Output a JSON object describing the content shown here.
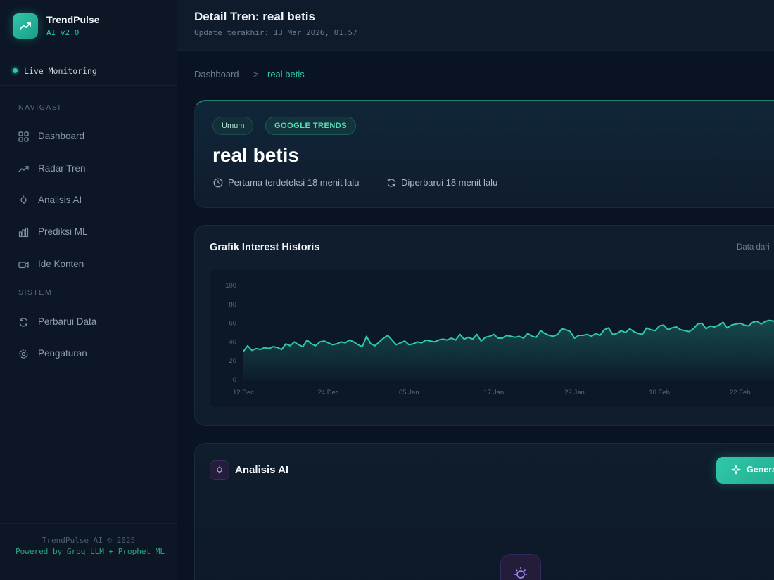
{
  "app": {
    "name": "TrendPulse",
    "version": "AI v2.0"
  },
  "status": {
    "live_label": "Live Monitoring"
  },
  "sidebar": {
    "nav_section": "NAVIGASI",
    "nav_items": [
      {
        "label": "Dashboard",
        "icon": "grid-icon"
      },
      {
        "label": "Radar Tren",
        "icon": "trending-up-icon"
      },
      {
        "label": "Analisis AI",
        "icon": "lightbulb-icon"
      },
      {
        "label": "Prediksi ML",
        "icon": "bar-chart-icon"
      },
      {
        "label": "Ide Konten",
        "icon": "video-icon"
      }
    ],
    "system_section": "SISTEM",
    "system_items": [
      {
        "label": "Perbarui Data",
        "icon": "refresh-icon"
      },
      {
        "label": "Pengaturan",
        "icon": "gear-icon"
      }
    ],
    "footer_copy": "TrendPulse AI © 2025",
    "footer_powered": "Powered by Groq LLM + Prophet ML"
  },
  "header": {
    "title": "Detail Tren: real betis",
    "subtitle": "Update terakhir: 13 Mar 2026, 01.57"
  },
  "breadcrumb": {
    "home": "Dashboard",
    "separator": ">",
    "current": "real betis"
  },
  "trend": {
    "category": "Umum",
    "source": "GOOGLE TRENDS",
    "title": "real betis",
    "first_detected": "Pertama terdeteksi 18 menit lalu",
    "updated": "Diperbarui 18 menit lalu"
  },
  "chart_section": {
    "title": "Grafik Interest Historis",
    "note": "Data dari"
  },
  "ai_section": {
    "title": "Analisis AI",
    "generate_label": "Generate"
  },
  "colors": {
    "accent": "#2fc9a8",
    "background": "#0a1322",
    "ai_purple": "#a78bfa"
  },
  "chart_data": {
    "type": "area",
    "title": "Grafik Interest Historis",
    "xlabel": "",
    "ylabel": "",
    "ylim": [
      0,
      100
    ],
    "yticks": [
      0,
      20,
      40,
      60,
      80,
      100
    ],
    "xticks": [
      "12 Dec",
      "24 Dec",
      "05 Jan",
      "17 Jan",
      "29 Jan",
      "10 Feb",
      "22 Feb"
    ],
    "grid": false,
    "series": [
      {
        "values": [
          30,
          36,
          31,
          33,
          32,
          34,
          33,
          35,
          34,
          32,
          38,
          36,
          40,
          37,
          35,
          42,
          38,
          36,
          40,
          41,
          39,
          37,
          38,
          40,
          39,
          42,
          40,
          37,
          35,
          46,
          38,
          36,
          40,
          44,
          47,
          42,
          37,
          39,
          41,
          37,
          38,
          40,
          39,
          42,
          41,
          40,
          42,
          43,
          42,
          44,
          42,
          48,
          43,
          45,
          43,
          48,
          41,
          45,
          46,
          48,
          44,
          44,
          47,
          46,
          45,
          46,
          44,
          49,
          46,
          45,
          52,
          49,
          47,
          46,
          48,
          54,
          53,
          51,
          44,
          47,
          47,
          48,
          46,
          49,
          47,
          53,
          55,
          48,
          49,
          52,
          50,
          54,
          51,
          49,
          48,
          55,
          53,
          52,
          57,
          58,
          53,
          55,
          56,
          53,
          52,
          51,
          54,
          59,
          60,
          54,
          57,
          56,
          58,
          61,
          55,
          58,
          59,
          60,
          58,
          57,
          61,
          62,
          59,
          62,
          63,
          62
        ]
      }
    ]
  }
}
